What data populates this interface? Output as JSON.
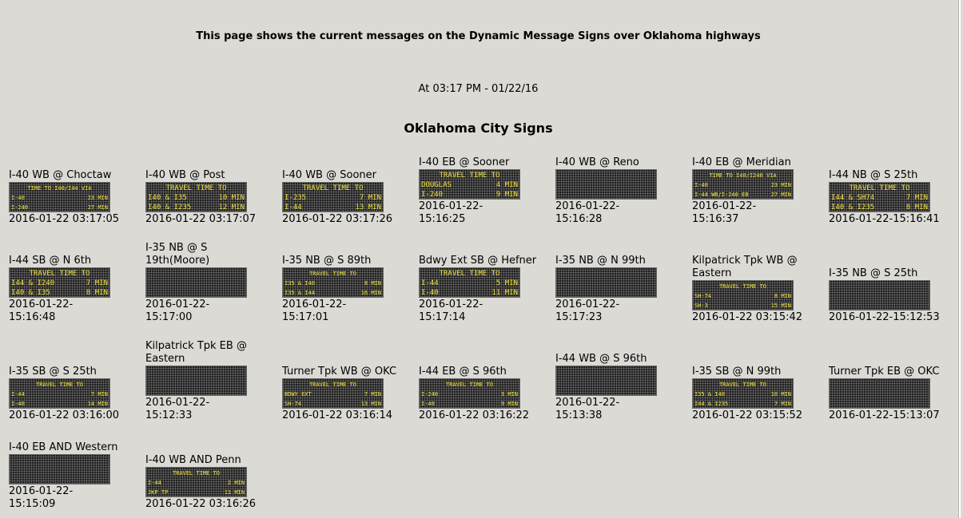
{
  "intro": "This page shows the current messages on the Dynamic Message Signs over Oklahoma highways",
  "timestamp": "At 03:17 PM - 01/22/16",
  "section_title": "Oklahoma City Signs",
  "rows": [
    [
      {
        "title": "I-40 WB @ Choctaw",
        "time": "2016-01-22 03:17:05",
        "small": true,
        "lines": [
          [
            "TIME TO I40/I44 VIA",
            ""
          ],
          [
            "I-40",
            "23 MIN"
          ],
          [
            "I-240",
            "27 MIN"
          ]
        ]
      },
      {
        "title": "I-40 WB @ Post",
        "time": "2016-01-22 03:17:07",
        "lines": [
          [
            "TRAVEL TIME TO",
            ""
          ],
          [
            "I40 & I35",
            "10 MIN"
          ],
          [
            "I40 & I235",
            "12 MIN"
          ]
        ]
      },
      {
        "title": "I-40 WB @ Sooner",
        "time": "2016-01-22 03:17:26",
        "lines": [
          [
            "TRAVEL TIME TO",
            ""
          ],
          [
            "I-235",
            "7 MIN"
          ],
          [
            "I-44",
            "13 MIN"
          ]
        ]
      },
      {
        "title": "I-40 EB @ Sooner",
        "time": "2016-01-22-\n15:16:25",
        "lines": [
          [
            "TRAVEL TIME TO",
            ""
          ],
          [
            "DOUGLAS",
            "4 MIN"
          ],
          [
            "I-240",
            "9 MIN"
          ]
        ]
      },
      {
        "title": "I-40 WB @ Reno",
        "time": "2016-01-22-\n15:16:28",
        "lines": []
      },
      {
        "title": "I-40 EB @ Meridian",
        "time": "2016-01-22-\n15:16:37",
        "small": true,
        "lines": [
          [
            "TIME TO I40/I240 VIA",
            ""
          ],
          [
            "I-40",
            "23 MIN"
          ],
          [
            "I-44 WB/I-240 EB",
            "27 MIN"
          ]
        ]
      },
      {
        "title": "I-44 NB @ S 25th",
        "time": "2016-01-22-15:16:41",
        "lines": [
          [
            "TRAVEL TIME TO",
            ""
          ],
          [
            "I44 & SH74",
            "7 MIN"
          ],
          [
            "I40 & I235",
            "8 MIN"
          ]
        ]
      }
    ],
    [
      {
        "title": "I-44 SB @ N 6th",
        "time": "2016-01-22-\n15:16:48",
        "lines": [
          [
            "TRAVEL TIME TO",
            ""
          ],
          [
            "I44 & I240",
            "7 MIN"
          ],
          [
            "I40 & I35",
            "8 MIN"
          ]
        ]
      },
      {
        "title": "I-35 NB @ S 19th(Moore)",
        "time": "2016-01-22-\n15:17:00",
        "lines": []
      },
      {
        "title": "I-35 NB @ S 89th",
        "time": "2016-01-22-\n15:17:01",
        "small": true,
        "lines": [
          [
            "TRAVEL TIME TO",
            ""
          ],
          [
            "I35 & I40",
            "8 MIN"
          ],
          [
            "I35 & I44",
            "16 MIN"
          ]
        ]
      },
      {
        "title": "Bdwy Ext SB @ Hefner",
        "time": "2016-01-22-\n15:17:14",
        "lines": [
          [
            "TRAVEL TIME TO",
            ""
          ],
          [
            "I-44",
            "5 MIN"
          ],
          [
            "I-40",
            "11 MIN"
          ]
        ]
      },
      {
        "title": "I-35 NB @ N 99th",
        "time": "2016-01-22-\n15:17:23",
        "lines": []
      },
      {
        "title": "Kilpatrick Tpk WB @ Eastern",
        "time": "2016-01-22 03:15:42",
        "small": true,
        "lines": [
          [
            "TRAVEL TIME TO",
            ""
          ],
          [
            "SH-74",
            "8 MIN"
          ],
          [
            "SH-3",
            "15 MIN"
          ]
        ]
      },
      {
        "title": "I-35 NB @ S 25th",
        "time": "2016-01-22-15:12:53",
        "lines": []
      }
    ],
    [
      {
        "title": "I-35 SB @ S 25th",
        "time": "2016-01-22 03:16:00",
        "small": true,
        "lines": [
          [
            "TRAVEL TIME TO",
            ""
          ],
          [
            "I-44",
            "7 MIN"
          ],
          [
            "I-40",
            "14 MIN"
          ]
        ]
      },
      {
        "title": "Kilpatrick Tpk EB @ Eastern",
        "time": "2016-01-22-\n15:12:33",
        "lines": []
      },
      {
        "title": "Turner Tpk WB @ OKC",
        "time": "2016-01-22 03:16:14",
        "small": true,
        "lines": [
          [
            "TRAVEL TIME TO",
            ""
          ],
          [
            "BDWY EXT",
            "7 MIN"
          ],
          [
            "SH-74",
            "13 MIN"
          ]
        ]
      },
      {
        "title": "I-44 EB @ S 96th",
        "time": "2016-01-22 03:16:22",
        "small": true,
        "lines": [
          [
            "TRAVEL TIME TO",
            ""
          ],
          [
            "I-240",
            "3 MIN"
          ],
          [
            "I-40",
            "9 MIN"
          ]
        ]
      },
      {
        "title": "I-44 WB @ S 96th",
        "time": "2016-01-22-\n15:13:38",
        "lines": []
      },
      {
        "title": "I-35 SB @ N 99th",
        "time": "2016-01-22 03:15:52",
        "small": true,
        "lines": [
          [
            "TRAVEL TIME TO",
            ""
          ],
          [
            "I35 & I40",
            "10 MIN"
          ],
          [
            "I44 & I235",
            "7 MIN"
          ]
        ]
      },
      {
        "title": "Turner Tpk EB @ OKC",
        "time": "2016-01-22-15:13:07",
        "lines": []
      }
    ],
    [
      {
        "title": "I-40 EB AND Western",
        "time": "2016-01-22-\n15:15:09",
        "lines": []
      },
      {
        "title": "I-40 WB AND Penn",
        "time": "2016-01-22 03:16:26",
        "small": true,
        "lines": [
          [
            "TRAVEL TIME TO",
            ""
          ],
          [
            "I-44",
            "2 MIN"
          ],
          [
            "JKP TP",
            "11 MIN"
          ]
        ]
      }
    ]
  ]
}
